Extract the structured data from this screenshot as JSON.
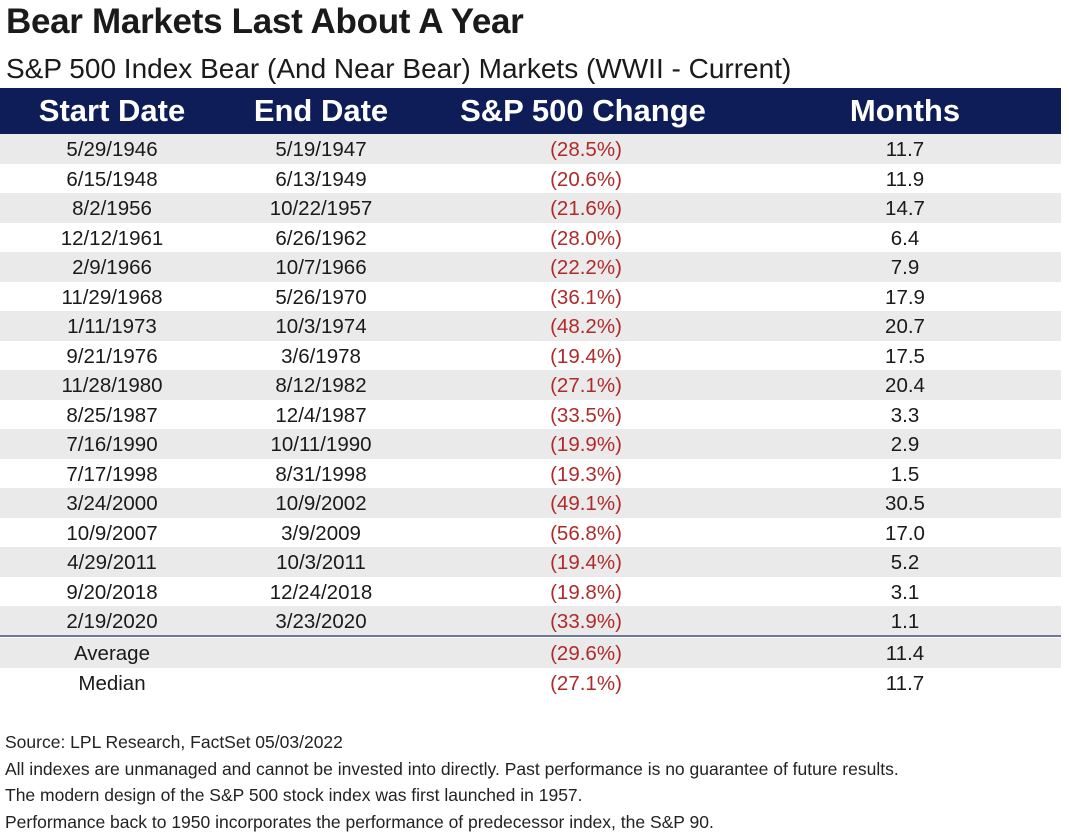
{
  "title": "Bear Markets Last About A Year",
  "subtitle": "S&P 500 Index Bear (And Near Bear) Markets (WWII - Current)",
  "table": {
    "headers": [
      "Start Date",
      "End Date",
      "S&P 500 Change",
      "Months"
    ],
    "rows": [
      {
        "start": "5/29/1946",
        "end": "5/19/1947",
        "change": "(28.5%)",
        "months": "11.7"
      },
      {
        "start": "6/15/1948",
        "end": "6/13/1949",
        "change": "(20.6%)",
        "months": "11.9"
      },
      {
        "start": "8/2/1956",
        "end": "10/22/1957",
        "change": "(21.6%)",
        "months": "14.7"
      },
      {
        "start": "12/12/1961",
        "end": "6/26/1962",
        "change": "(28.0%)",
        "months": "6.4"
      },
      {
        "start": "2/9/1966",
        "end": "10/7/1966",
        "change": "(22.2%)",
        "months": "7.9"
      },
      {
        "start": "11/29/1968",
        "end": "5/26/1970",
        "change": "(36.1%)",
        "months": "17.9"
      },
      {
        "start": "1/11/1973",
        "end": "10/3/1974",
        "change": "(48.2%)",
        "months": "20.7"
      },
      {
        "start": "9/21/1976",
        "end": "3/6/1978",
        "change": "(19.4%)",
        "months": "17.5"
      },
      {
        "start": "11/28/1980",
        "end": "8/12/1982",
        "change": "(27.1%)",
        "months": "20.4"
      },
      {
        "start": "8/25/1987",
        "end": "12/4/1987",
        "change": "(33.5%)",
        "months": "3.3"
      },
      {
        "start": "7/16/1990",
        "end": "10/11/1990",
        "change": "(19.9%)",
        "months": "2.9"
      },
      {
        "start": "7/17/1998",
        "end": "8/31/1998",
        "change": "(19.3%)",
        "months": "1.5"
      },
      {
        "start": "3/24/2000",
        "end": "10/9/2002",
        "change": "(49.1%)",
        "months": "30.5"
      },
      {
        "start": "10/9/2007",
        "end": "3/9/2009",
        "change": "(56.8%)",
        "months": "17.0"
      },
      {
        "start": "4/29/2011",
        "end": "10/3/2011",
        "change": "(19.4%)",
        "months": "5.2"
      },
      {
        "start": "9/20/2018",
        "end": "12/24/2018",
        "change": "(19.8%)",
        "months": "3.1"
      },
      {
        "start": "2/19/2020",
        "end": "3/23/2020",
        "change": "(33.9%)",
        "months": "1.1"
      }
    ],
    "summary": [
      {
        "label": "Average",
        "change": "(29.6%)",
        "months": "11.4"
      },
      {
        "label": "Median",
        "change": "(27.1%)",
        "months": "11.7"
      }
    ]
  },
  "notes": [
    "Source: LPL Research, FactSet 05/03/2022",
    "All indexes are unmanaged and cannot be invested into directly. Past performance is no guarantee of future results.",
    "The modern design of the S&P 500 stock index was first launched in 1957.",
    "Performance back to 1950 incorporates the performance of predecessor index, the S&P 90."
  ],
  "colors": {
    "header_bg": "#0e1d57",
    "header_text": "#ffffff",
    "negative_text": "#b02a2a",
    "row_shade": "#eaeaea"
  }
}
